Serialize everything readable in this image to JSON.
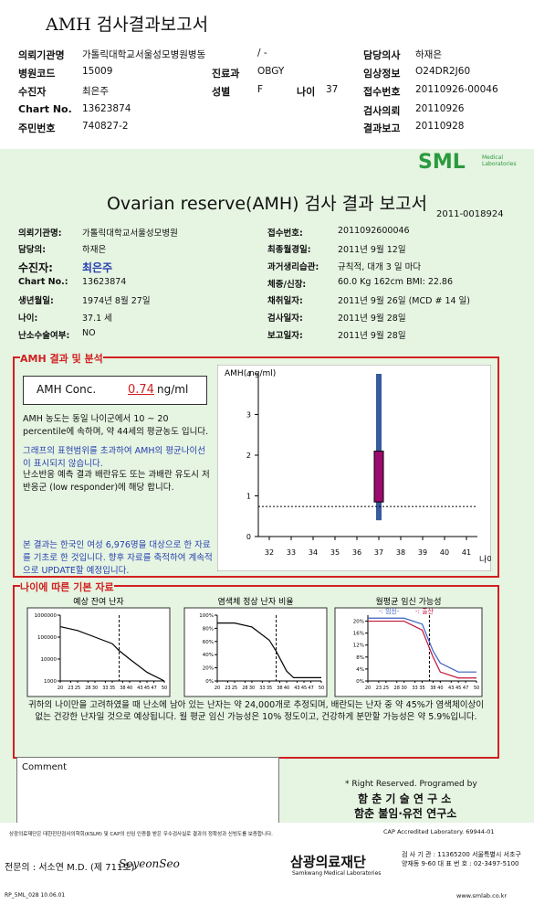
{
  "header": {
    "title": "AMH 검사결과보고서",
    "fields": [
      {
        "label": "의뢰기관명",
        "value": "가톨릭대학교서울성모병원병동"
      },
      {
        "label": "",
        "value": "/ -"
      },
      {
        "label": "담당의사",
        "value": "하재은"
      },
      {
        "label": "병원코드",
        "value": "15009"
      },
      {
        "label": "진료과",
        "value": "OBGY"
      },
      {
        "label": "임상정보",
        "value": "O24DR2J60"
      },
      {
        "label": "수진자",
        "value": "최은주"
      },
      {
        "label": "성별",
        "value": "F"
      },
      {
        "label": "나이",
        "value": "37"
      },
      {
        "label": "접수번호",
        "value": "20110926-00046"
      },
      {
        "label": "Chart No.",
        "value": "13623874"
      },
      {
        "label": "검사의뢰",
        "value": "20110926"
      },
      {
        "label": "주민번호",
        "value": "740827-2"
      },
      {
        "label": "결과보고",
        "value": "20110928"
      }
    ]
  },
  "report": {
    "logo": "SML",
    "logo_sub": "Medical Laboratories",
    "title": "Ovarian reserve(AMH) 검사 결과 보고서",
    "number": "2011-0018924",
    "left": [
      {
        "label": "의뢰기관명:",
        "value": "가톨릭대학교서울성모병원"
      },
      {
        "label": "담당의:",
        "value": "하재은"
      },
      {
        "label": "수진자:",
        "value": "최은주"
      },
      {
        "label": "Chart No.:",
        "value": "13623874"
      },
      {
        "label": "생년월일:",
        "value": "1974년 8월 27일"
      },
      {
        "label": "나이:",
        "value": "37.1 세"
      },
      {
        "label": "난소수술여부:",
        "value": "NO"
      }
    ],
    "right": [
      {
        "label": "접수번호:",
        "value": "2011092600046"
      },
      {
        "label": "최종월경일:",
        "value": "2011년 9월 12일"
      },
      {
        "label": "과거생리습관:",
        "value": "규칙적, 대개   3 일 마다"
      },
      {
        "label": "체중/신장:",
        "value": "60.0 Kg   162cm   BMI:  22.86"
      },
      {
        "label": "채취일자:",
        "value": "2011년 9월 26일   (MCD # 14 일)"
      },
      {
        "label": "검사일자:",
        "value": "2011년 9월 28일"
      },
      {
        "label": "보고일자:",
        "value": "2011년 9월 28일"
      }
    ]
  },
  "analysis": {
    "title": "AMH 결과 및 분석",
    "conc_label": "AMH Conc.",
    "conc_value": "0.74",
    "conc_unit": "ng/ml",
    "paragraphs": [
      "AMH 농도는 동일 나이군에서  10 ~ 20 percentile에 속하며, 약  44세의 평균농도 입니다.",
      "그래프의 표현범위를 초과하여 AMH의 평균나이선이 표시되지 않습니다.",
      "난소반응 예측 결과 배란유도 또는 과배란 유도시 저반응군 (low responder)에 해당 합니다.",
      "본 결과는 한국인 여성 6,976명을 대상으로 한 자료를 기초로 한 것입니다. 향후 자료를 축적하여 계속적으로 UPDATE할 예정입니다."
    ]
  },
  "chart_data": [
    {
      "type": "box",
      "ylabel": "AMH( ng/ml)",
      "xlabel": "나이",
      "ylim": [
        0,
        4
      ],
      "yticks": [
        0,
        1,
        2,
        3,
        4
      ],
      "xlim": [
        31.5,
        41.5
      ],
      "xticks": [
        32,
        33,
        34,
        35,
        36,
        37,
        38,
        39,
        40,
        41
      ],
      "x": 37,
      "whisker_low": 0.4,
      "q1": 0.85,
      "q3": 2.1,
      "whisker_high": 4,
      "patient": 0.74,
      "box_color": "#9c0a6e",
      "whisker_color": "#3a5a9e"
    },
    {
      "type": "line",
      "title": "예상 잔여 난자",
      "log": true,
      "ylim": [
        1000,
        1000000
      ],
      "yticks": [
        1000,
        10000,
        100000,
        1000000
      ],
      "xlim": [
        20,
        50
      ],
      "xticks": [
        20,
        23,
        25,
        28,
        30,
        33,
        35,
        38,
        40,
        43,
        45,
        47,
        50
      ],
      "marker": 37,
      "series": [
        {
          "color": "#000000",
          "x": [
            20,
            25,
            30,
            35,
            37,
            40,
            45,
            50
          ],
          "values": [
            300000,
            200000,
            100000,
            50000,
            24000,
            10000,
            2500,
            1000
          ]
        }
      ]
    },
    {
      "type": "line",
      "title": "염색체 정상 난자 비율",
      "ylim": [
        0,
        100
      ],
      "yticks": [
        {
          "value": 0,
          "label": "0%"
        },
        {
          "value": 20,
          "label": "20%"
        },
        {
          "value": 40,
          "label": "40%"
        },
        {
          "value": 60,
          "label": "60%"
        },
        {
          "value": 80,
          "label": "80%"
        },
        {
          "value": 100,
          "label": "100%"
        }
      ],
      "xlim": [
        20,
        50
      ],
      "xticks": [
        20,
        23,
        25,
        28,
        30,
        33,
        35,
        38,
        40,
        43,
        45,
        47,
        50
      ],
      "marker": 37,
      "series": [
        {
          "color": "#000000",
          "x": [
            20,
            25,
            30,
            35,
            37,
            40,
            42,
            45,
            50
          ],
          "values": [
            88,
            88,
            82,
            62,
            45,
            15,
            5,
            5,
            5
          ]
        }
      ]
    },
    {
      "type": "line",
      "title": "월평균 임신 가능성",
      "ylim": [
        0,
        22
      ],
      "yticks": [
        {
          "value": 0,
          "label": "0%"
        },
        {
          "value": 4,
          "label": "4%"
        },
        {
          "value": 8,
          "label": "8%"
        },
        {
          "value": 12,
          "label": "12%"
        },
        {
          "value": 16,
          "label": "16%"
        },
        {
          "value": 20,
          "label": "20%"
        }
      ],
      "xlim": [
        20,
        50
      ],
      "xticks": [
        20,
        23,
        25,
        28,
        30,
        33,
        35,
        38,
        40,
        43,
        45,
        47,
        50
      ],
      "marker": 37,
      "series": [
        {
          "name": "-: 임신-",
          "color": "#3b5fc4",
          "x": [
            20,
            30,
            35,
            38,
            40,
            45,
            50
          ],
          "values": [
            21,
            21,
            19,
            10,
            6,
            3,
            3
          ]
        },
        {
          "name": "-: 출산",
          "color": "#c0143c",
          "x": [
            20,
            30,
            35,
            38,
            40,
            45,
            50
          ],
          "values": [
            20,
            20,
            17,
            8,
            3,
            1,
            1
          ]
        }
      ]
    }
  ],
  "basic": {
    "title": "나이에 따른 기본 자료",
    "summary": "귀하의 나이만을 고려하였을 때 난소에 남아 있는 난자는 약  24,000개로 추정되며, 배란되는 난자 중 약  45%가 염색체이상이 없는 건강한 난자일 것으로 예상됩니다. 월 평균 임신 가능성은  10% 정도이고, 건강하게 분만할 가능성은 약  5.9%입니다."
  },
  "comment": "Comment",
  "rights": {
    "line1": "* Right Reserved. Programed by",
    "line2": "함 춘  기 술  연 구 소",
    "line3": "함춘 불임·유전 연구소"
  },
  "footer": {
    "cert": "상광의료재단은 대한진단검사의학회(KSLM) 및 CAP의 신임 인증을 받은 우수검사실로 결과의 정확성과 신빙도를 보증합니다.",
    "cap": "CAP  Accredited  Laboratory.  69944-01",
    "doctor": "전문의 : 서소연 M.D. (제 711호)",
    "signature": "SoyeonSeo",
    "org": "삼광의료재단",
    "org_en": "Samkwang Medical Laboratories",
    "contact": "검 사 기 관 : 11365200 서울특별시 서초구 양재동 9-60 대 표 번 호 : 02-3497-5100",
    "code": "RP_5ML_028  10.06.01",
    "url": "www.smlab.co.kr"
  }
}
